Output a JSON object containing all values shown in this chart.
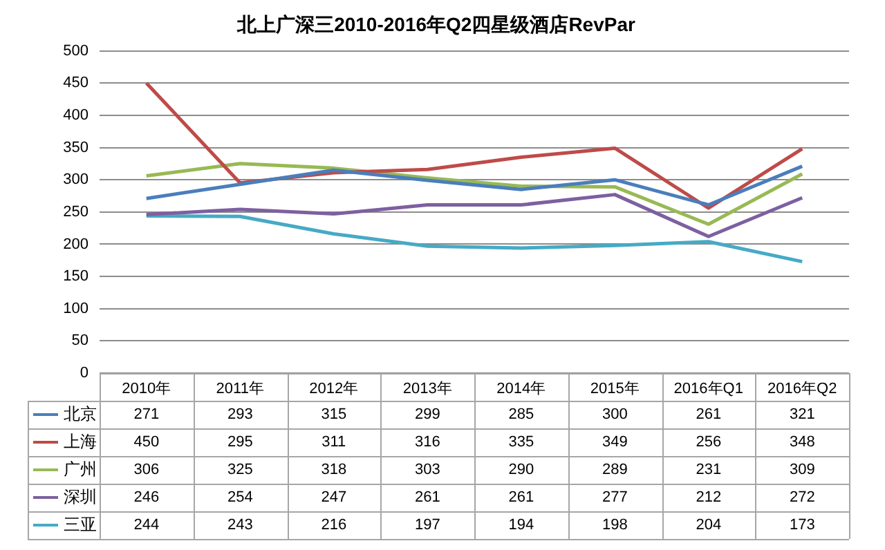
{
  "chart_data": {
    "type": "line",
    "title": "北上广深三2010-2016年Q2四星级酒店RevPar",
    "categories": [
      "2010年",
      "2011年",
      "2012年",
      "2013年",
      "2014年",
      "2015年",
      "2016年Q1",
      "2016年Q2"
    ],
    "series": [
      {
        "name": "北京",
        "color": "#4a7ebb",
        "values": [
          271,
          293,
          315,
          299,
          285,
          300,
          261,
          321
        ]
      },
      {
        "name": "上海",
        "color": "#be4b48",
        "values": [
          450,
          295,
          311,
          316,
          335,
          349,
          256,
          348
        ]
      },
      {
        "name": "广州",
        "color": "#98b954",
        "values": [
          306,
          325,
          318,
          303,
          290,
          289,
          231,
          309
        ]
      },
      {
        "name": "深圳",
        "color": "#7d60a0",
        "values": [
          246,
          254,
          247,
          261,
          261,
          277,
          212,
          272
        ]
      },
      {
        "name": "三亚",
        "color": "#46aac5",
        "values": [
          244,
          243,
          216,
          197,
          194,
          198,
          204,
          173
        ]
      }
    ],
    "ylim": [
      0,
      500
    ],
    "yticks": [
      0,
      50,
      100,
      150,
      200,
      250,
      300,
      350,
      400,
      450,
      500
    ],
    "grid": "y",
    "legend": "bottom",
    "data_labels": true,
    "marker": "none",
    "line_style": "solid"
  }
}
